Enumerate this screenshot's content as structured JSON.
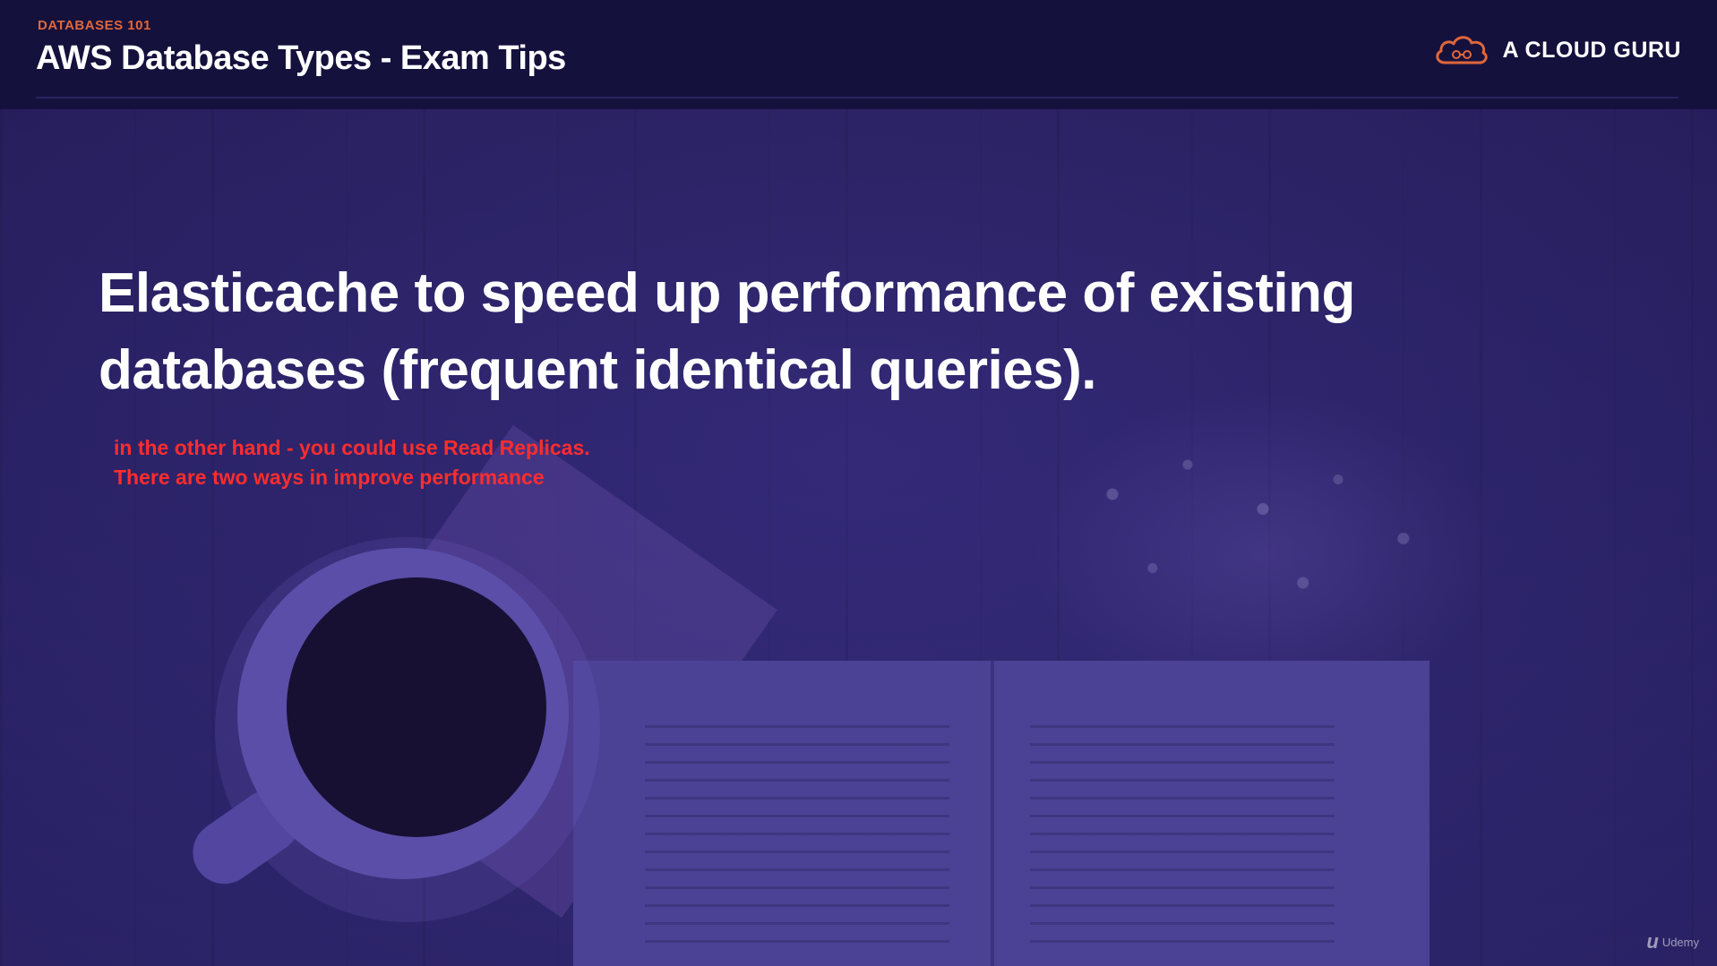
{
  "header": {
    "eyebrow": "DATABASES 101",
    "title": "AWS Database Types - Exam Tips",
    "brand": {
      "name": "A CLOUD GURU",
      "icon": "cloud-logo-icon",
      "accent": "#e0673a"
    }
  },
  "main": {
    "headline_line1": "Elasticache to speed up performance of existing",
    "headline_line2": "databases (frequent identical queries).",
    "note_line1": "in the other hand - you could use Read Replicas.",
    "note_line2": "There are two ways in improve performance",
    "note_color": "#ff2d2d"
  },
  "watermark": {
    "mark": "u",
    "text": "Udemy"
  }
}
